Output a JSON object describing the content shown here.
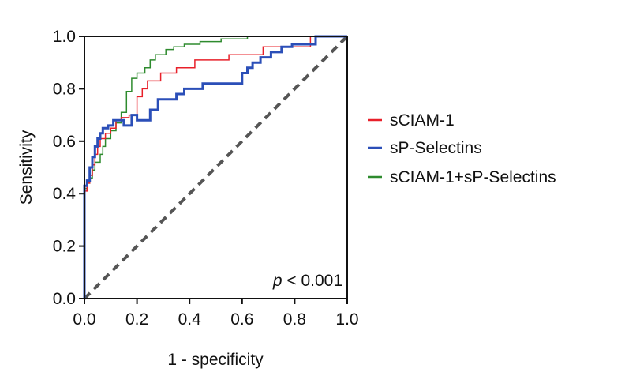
{
  "chart_data": {
    "type": "line",
    "title": "",
    "xlabel": "1 -  specificity",
    "ylabel": "Sensitivity",
    "xlim": [
      0,
      1
    ],
    "ylim": [
      0,
      1
    ],
    "xticks": [
      0.0,
      0.2,
      0.4,
      0.6,
      0.8,
      1.0
    ],
    "yticks": [
      0.0,
      0.2,
      0.4,
      0.6,
      0.8,
      1.0
    ],
    "tick_labels": [
      "0.0",
      "0.2",
      "0.4",
      "0.6",
      "0.8",
      "1.0"
    ],
    "grid": false,
    "legend_position": "right",
    "annotation": {
      "p_symbol": "p",
      "p_rest": " < 0.001"
    },
    "reference_line": {
      "x": [
        0,
        1
      ],
      "y": [
        0,
        1
      ],
      "style": "dashed",
      "color": "#555555"
    },
    "series": [
      {
        "name": "sCIAM-1",
        "color": "#e8202a",
        "width": 1.5,
        "x": [
          0,
          0,
          0.01,
          0.01,
          0.02,
          0.02,
          0.03,
          0.03,
          0.04,
          0.04,
          0.05,
          0.05,
          0.06,
          0.06,
          0.08,
          0.08,
          0.1,
          0.1,
          0.12,
          0.12,
          0.14,
          0.14,
          0.17,
          0.17,
          0.2,
          0.2,
          0.22,
          0.22,
          0.24,
          0.24,
          0.29,
          0.29,
          0.35,
          0.35,
          0.42,
          0.42,
          0.55,
          0.55,
          0.68,
          0.68,
          0.86,
          0.86,
          1.0
        ],
        "y": [
          0,
          0.41,
          0.41,
          0.44,
          0.44,
          0.47,
          0.47,
          0.51,
          0.51,
          0.55,
          0.55,
          0.58,
          0.58,
          0.61,
          0.61,
          0.63,
          0.63,
          0.65,
          0.65,
          0.68,
          0.68,
          0.69,
          0.69,
          0.7,
          0.7,
          0.77,
          0.77,
          0.8,
          0.8,
          0.83,
          0.83,
          0.86,
          0.86,
          0.88,
          0.88,
          0.91,
          0.91,
          0.93,
          0.93,
          0.96,
          0.96,
          1.0,
          1.0
        ]
      },
      {
        "name": "sP-Selectins",
        "color": "#2b4fb8",
        "width": 3,
        "x": [
          0,
          0,
          0.01,
          0.01,
          0.02,
          0.02,
          0.03,
          0.03,
          0.04,
          0.04,
          0.05,
          0.05,
          0.06,
          0.06,
          0.07,
          0.07,
          0.09,
          0.09,
          0.11,
          0.11,
          0.15,
          0.15,
          0.18,
          0.18,
          0.2,
          0.2,
          0.25,
          0.25,
          0.28,
          0.28,
          0.35,
          0.35,
          0.38,
          0.38,
          0.45,
          0.45,
          0.6,
          0.6,
          0.62,
          0.62,
          0.64,
          0.64,
          0.67,
          0.67,
          0.71,
          0.71,
          0.75,
          0.75,
          0.79,
          0.79,
          0.88,
          0.88,
          1.0
        ],
        "y": [
          0,
          0.43,
          0.43,
          0.45,
          0.45,
          0.5,
          0.5,
          0.54,
          0.54,
          0.58,
          0.58,
          0.61,
          0.61,
          0.63,
          0.63,
          0.65,
          0.65,
          0.66,
          0.66,
          0.68,
          0.68,
          0.66,
          0.66,
          0.7,
          0.7,
          0.68,
          0.68,
          0.72,
          0.72,
          0.76,
          0.76,
          0.78,
          0.78,
          0.8,
          0.8,
          0.82,
          0.82,
          0.86,
          0.86,
          0.88,
          0.88,
          0.9,
          0.9,
          0.92,
          0.92,
          0.94,
          0.94,
          0.96,
          0.96,
          0.97,
          0.97,
          1.0,
          1.0
        ]
      },
      {
        "name": "sCIAM-1+sP-Selectins",
        "color": "#2e8b2e",
        "width": 1.5,
        "x": [
          0,
          0,
          0.01,
          0.01,
          0.02,
          0.02,
          0.03,
          0.03,
          0.04,
          0.04,
          0.06,
          0.06,
          0.07,
          0.07,
          0.08,
          0.08,
          0.1,
          0.1,
          0.12,
          0.12,
          0.14,
          0.14,
          0.16,
          0.16,
          0.18,
          0.18,
          0.2,
          0.2,
          0.23,
          0.23,
          0.25,
          0.25,
          0.27,
          0.27,
          0.31,
          0.31,
          0.34,
          0.34,
          0.38,
          0.38,
          0.44,
          0.44,
          0.52,
          0.52,
          0.62,
          0.62,
          1.0
        ],
        "y": [
          0,
          0.42,
          0.42,
          0.44,
          0.44,
          0.46,
          0.46,
          0.49,
          0.49,
          0.52,
          0.52,
          0.55,
          0.55,
          0.58,
          0.58,
          0.61,
          0.61,
          0.64,
          0.64,
          0.67,
          0.67,
          0.71,
          0.71,
          0.79,
          0.79,
          0.84,
          0.84,
          0.86,
          0.86,
          0.88,
          0.88,
          0.91,
          0.91,
          0.93,
          0.93,
          0.95,
          0.95,
          0.96,
          0.96,
          0.97,
          0.97,
          0.98,
          0.98,
          0.99,
          0.99,
          1.0,
          1.0
        ]
      }
    ]
  }
}
